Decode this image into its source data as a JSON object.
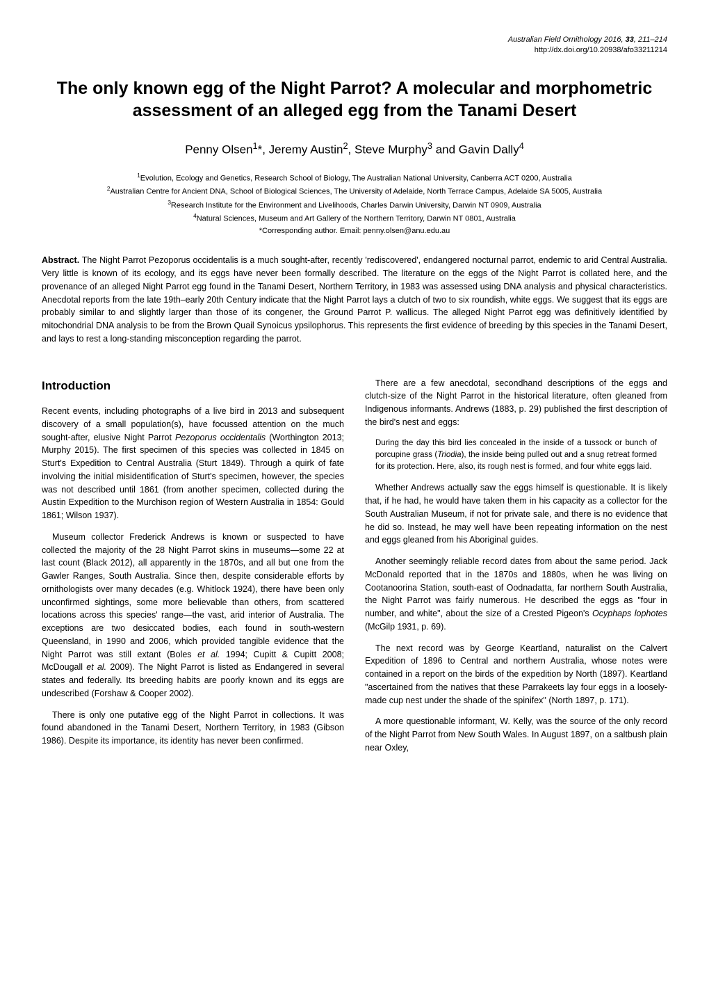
{
  "header": {
    "journal": "Australian Field Ornithology",
    "year": "2016",
    "volume": "33",
    "pages": "211–214",
    "doi": "http://dx.doi.org/10.20938/afo33211214"
  },
  "title": "The only known egg of the Night Parrot? A molecular and morphometric assessment of an alleged egg from the Tanami Desert",
  "authors_html": "Penny Olsen<sup>1</sup>*, Jeremy Austin<sup>2</sup>, Steve Murphy<sup>3</sup> and Gavin Dally<sup>4</sup>",
  "affiliations": {
    "a1": "Evolution, Ecology and Genetics, Research School of Biology, The Australian National University, Canberra ACT 0200, Australia",
    "a2": "Australian Centre for Ancient DNA, School of Biological Sciences, The University of Adelaide, North Terrace Campus, Adelaide SA 5005, Australia",
    "a3": "Research Institute for the Environment and Livelihoods, Charles Darwin University, Darwin NT 0909, Australia",
    "a4": "Natural Sciences, Museum and Art Gallery of the Northern Territory, Darwin NT 0801, Australia",
    "corresponding": "*Corresponding author. Email: penny.olsen@anu.edu.au"
  },
  "abstract_label": "Abstract.",
  "abstract_text": " The Night Parrot Pezoporus occidentalis is a much sought-after, recently 'rediscovered', endangered nocturnal parrot, endemic to arid Central Australia. Very little is known of its ecology, and its eggs have never been formally described. The literature on the eggs of the Night Parrot is collated here, and the provenance of an alleged Night Parrot egg found in the Tanami Desert, Northern Territory, in 1983 was assessed using DNA analysis and physical characteristics. Anecdotal reports from the late 19th–early 20th Century indicate that the Night Parrot lays a clutch of two to six roundish, white eggs. We suggest that its eggs are probably similar to and slightly larger than those of its congener, the Ground Parrot P. wallicus. The alleged Night Parrot egg was definitively identified by mitochondrial DNA analysis to be from the Brown Quail Synoicus ypsilophorus. This represents the first evidence of breeding by this species in the Tanami Desert, and lays to rest a long-standing misconception regarding the parrot.",
  "section_heading": "Introduction",
  "left_column": {
    "p1": "Recent events, including photographs of a live bird in 2013 and subsequent discovery of a small population(s), have focussed attention on the much sought-after, elusive Night Parrot Pezoporus occidentalis (Worthington 2013; Murphy 2015). The first specimen of this species was collected in 1845 on Sturt's Expedition to Central Australia (Sturt 1849). Through a quirk of fate involving the initial misidentification of Sturt's specimen, however, the species was not described until 1861 (from another specimen, collected during the Austin Expedition to the Murchison region of Western Australia in 1854: Gould 1861; Wilson 1937).",
    "p2": "Museum collector Frederick Andrews is known or suspected to have collected the majority of the 28 Night Parrot skins in museums—some 22 at last count (Black 2012), all apparently in the 1870s, and all but one from the Gawler Ranges, South Australia. Since then, despite considerable efforts by ornithologists over many decades (e.g. Whitlock 1924), there have been only unconfirmed sightings, some more believable than others, from scattered locations across this species' range—the vast, arid interior of Australia. The exceptions are two desiccated bodies, each found in south-western Queensland, in 1990 and 2006, which provided tangible evidence that the Night Parrot was still extant (Boles et al. 1994; Cupitt & Cupitt 2008; McDougall et al. 2009). The Night Parrot is listed as Endangered in several states and federally. Its breeding habits are poorly known and its eggs are undescribed (Forshaw & Cooper 2002).",
    "p3": "There is only one putative egg of the Night Parrot in collections. It was found abandoned in the Tanami Desert, Northern Territory, in 1983 (Gibson 1986). Despite its importance, its identity has never been confirmed."
  },
  "right_column": {
    "p1": "There are a few anecdotal, secondhand descriptions of the eggs and clutch-size of the Night Parrot in the historical literature, often gleaned from Indigenous informants. Andrews (1883, p. 29) published the first description of the bird's nest and eggs:",
    "quote1": "During the day this bird lies concealed in the inside of a tussock or bunch of porcupine grass (Triodia), the inside being pulled out and a snug retreat formed for its protection. Here, also, its rough nest is formed, and four white eggs laid.",
    "p2": "Whether Andrews actually saw the eggs himself is questionable. It is likely that, if he had, he would have taken them in his capacity as a collector for the South Australian Museum, if not for private sale, and there is no evidence that he did so. Instead, he may well have been repeating information on the nest and eggs gleaned from his Aboriginal guides.",
    "p3": "Another seemingly reliable record dates from about the same period. Jack McDonald reported that in the 1870s and 1880s, when he was living on Cootanoorina Station, south-east of Oodnadatta, far northern South Australia, the Night Parrot was fairly numerous. He described the eggs as \"four in number, and white\", about the size of a Crested Pigeon's Ocyphaps lophotes (McGilp 1931, p. 69).",
    "p4": "The next record was by George Keartland, naturalist on the Calvert Expedition of 1896 to Central and northern Australia, whose notes were contained in a report on the birds of the expedition by North (1897). Keartland \"ascertained from the natives that these Parrakeets lay four eggs in a loosely-made cup nest under the shade of the spinifex\" (North 1897, p. 171).",
    "p5": "A more questionable informant, W. Kelly, was the source of the only record of the Night Parrot from New South Wales. In August 1897, on a saltbush plain near Oxley,"
  }
}
